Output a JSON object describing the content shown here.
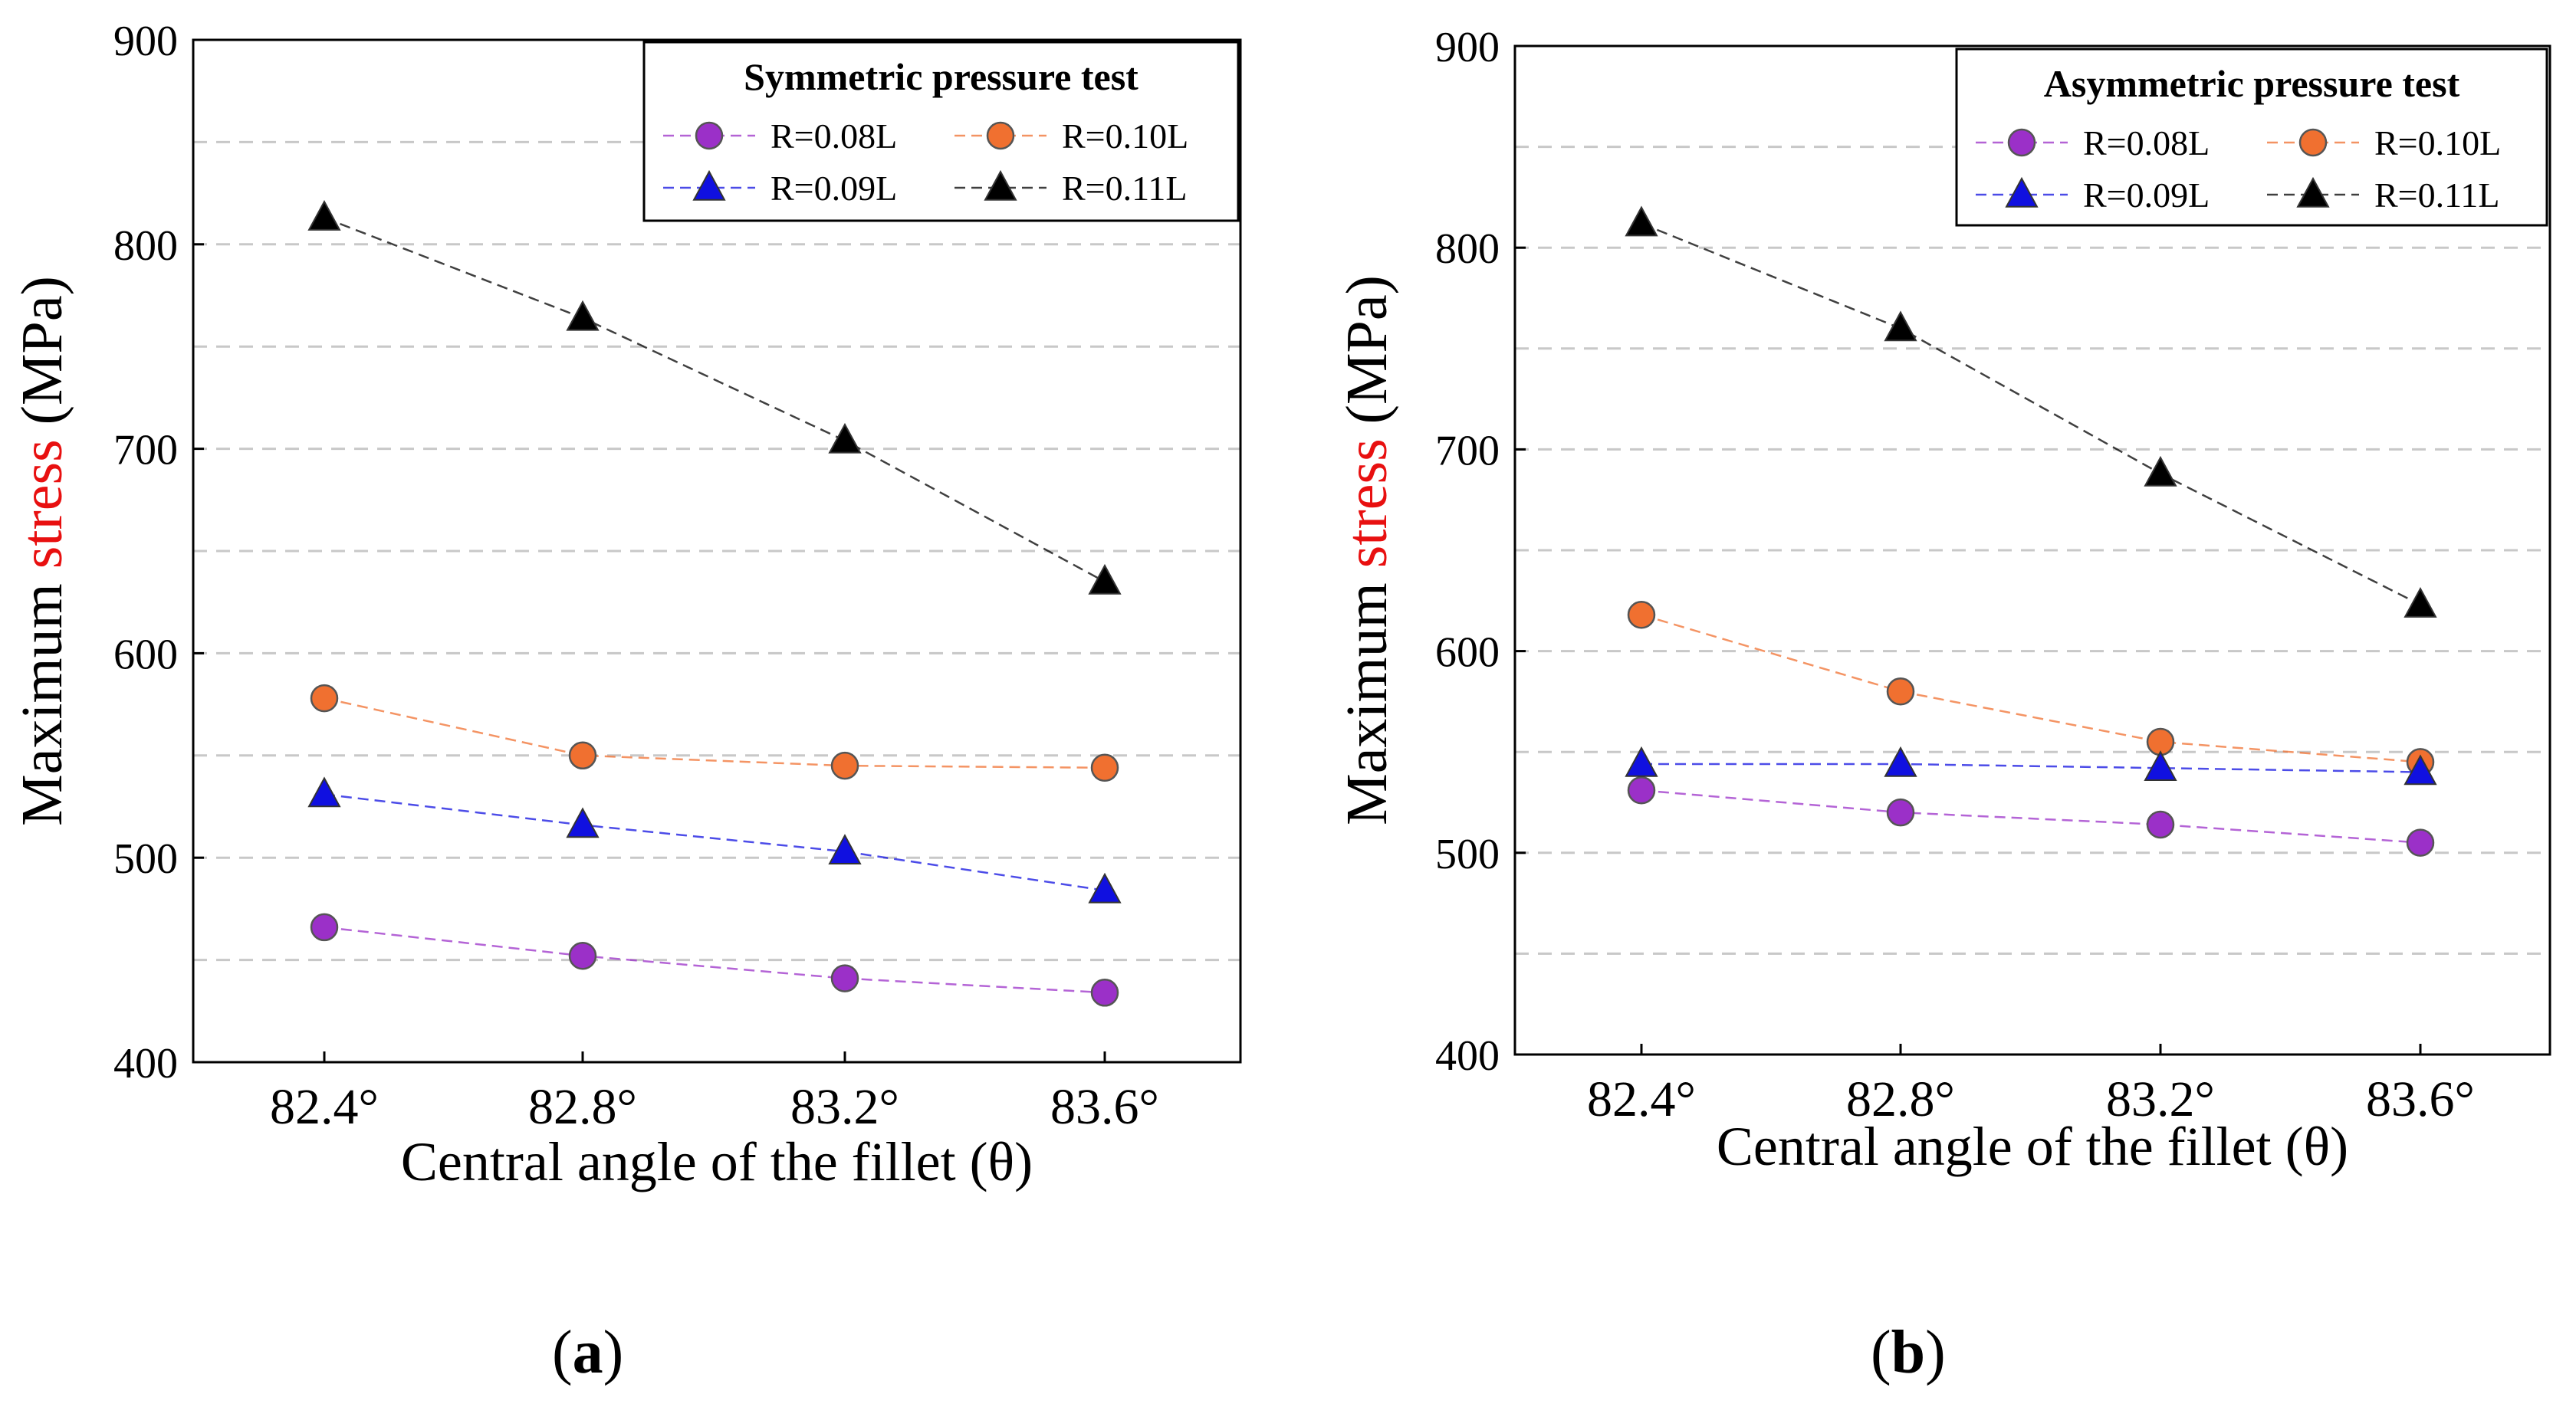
{
  "chart_data": [
    {
      "type": "line",
      "legend_title": "Symmetric pressure test",
      "x": [
        "82.4°",
        "82.8°",
        "83.2°",
        "83.6°"
      ],
      "xlabel": "Central angle of the fillet (θ)",
      "ylabel_parts": [
        "Maximum ",
        "stress",
        " (MPa)"
      ],
      "ylim": [
        400,
        900
      ],
      "yticks": [
        400,
        500,
        600,
        700,
        800,
        900
      ],
      "gridlines": [
        450,
        500,
        550,
        600,
        650,
        700,
        750,
        800,
        850
      ],
      "grid": "horizontal dashed",
      "legend_position": "top-right",
      "series": [
        {
          "name": "R=0.08L",
          "marker": "circle",
          "color": "#9b30c8",
          "values": [
            466,
            452,
            441,
            434
          ]
        },
        {
          "name": "R=0.10L",
          "marker": "circle",
          "color": "#f07030",
          "values": [
            578,
            550,
            545,
            544
          ]
        },
        {
          "name": "R=0.09L",
          "marker": "triangle",
          "color": "#1010e0",
          "values": [
            531,
            516,
            503,
            484
          ]
        },
        {
          "name": "R=0.11L",
          "marker": "triangle",
          "color": "#000000",
          "values": [
            813,
            764,
            704,
            635
          ]
        }
      ]
    },
    {
      "type": "line",
      "legend_title": "Asymmetric pressure test",
      "x": [
        "82.4°",
        "82.8°",
        "83.2°",
        "83.6°"
      ],
      "xlabel": "Central angle of the fillet (θ)",
      "ylabel_parts": [
        "Maximum ",
        "stress",
        " (MPa)"
      ],
      "ylim": [
        400,
        900
      ],
      "yticks": [
        400,
        500,
        600,
        700,
        800,
        900
      ],
      "gridlines": [
        450,
        500,
        550,
        600,
        650,
        700,
        750,
        800,
        850
      ],
      "grid": "horizontal dashed",
      "legend_position": "top-right",
      "series": [
        {
          "name": "R=0.08L",
          "marker": "circle",
          "color": "#9b30c8",
          "values": [
            531,
            520,
            514,
            505
          ]
        },
        {
          "name": "R=0.10L",
          "marker": "circle",
          "color": "#f07030",
          "values": [
            618,
            580,
            555,
            545
          ]
        },
        {
          "name": "R=0.09L",
          "marker": "triangle",
          "color": "#1010e0",
          "values": [
            544,
            544,
            542,
            540
          ]
        },
        {
          "name": "R=0.11L",
          "marker": "triangle",
          "color": "#000000",
          "values": [
            812,
            760,
            688,
            623
          ]
        }
      ]
    }
  ],
  "captions": [
    {
      "open": "(",
      "letter": "a",
      "close": ")"
    },
    {
      "open": "(",
      "letter": "b",
      "close": ")"
    }
  ],
  "colors": {
    "ylabel_highlight": "#e81010",
    "gridline": "#c8c8c8",
    "axis": "#000000"
  }
}
